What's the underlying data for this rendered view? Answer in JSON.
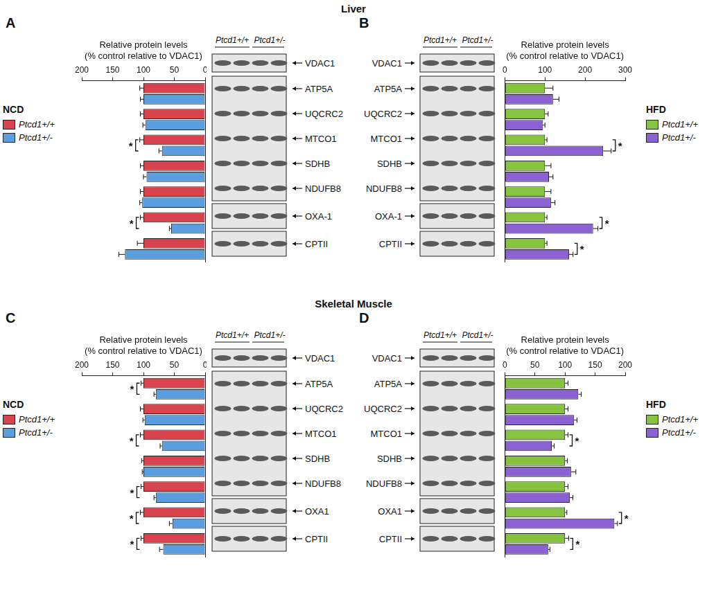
{
  "sections": [
    "Liver",
    "Skeletal Muscle"
  ],
  "chart_data": [
    {
      "type": "bar",
      "panel": "A",
      "legend_title": "NCD",
      "orientation": "horizontal",
      "x_label": [
        "Relative protein levels",
        "(% control relative to VDAC1)"
      ],
      "xlim": [
        200,
        0
      ],
      "xticks": [
        0,
        50,
        100,
        150,
        200
      ],
      "grid": false,
      "tick_labels": "x",
      "legend": "left",
      "loading_control": "VDAC1",
      "categories": [
        "ATP5A",
        "UQCRC2",
        "MTCO1",
        "SDHB",
        "NDUFB8",
        "OXA-1",
        "CPTII"
      ],
      "series": [
        {
          "name": "Ptcd1+/+",
          "color": "#d9434e",
          "values": [
            100,
            100,
            100,
            100,
            100,
            100,
            100
          ],
          "errors": [
            6,
            5,
            6,
            5,
            5,
            5,
            10
          ]
        },
        {
          "name": "Ptcd1+/-",
          "color": "#5a9ee0",
          "values": [
            100,
            97,
            70,
            95,
            102,
            55,
            130
          ],
          "errors": [
            5,
            4,
            5,
            5,
            4,
            3,
            10
          ]
        }
      ],
      "annotations": [
        {
          "category": "MTCO1",
          "text": "*"
        },
        {
          "category": "OXA-1",
          "text": "*"
        }
      ]
    },
    {
      "type": "bar",
      "panel": "B",
      "legend_title": "HFD",
      "orientation": "horizontal",
      "x_label": [
        "Relative protein levels",
        "(% control relative to VDAC1)"
      ],
      "xlim": [
        0,
        300
      ],
      "xticks": [
        0,
        100,
        200,
        300
      ],
      "grid": false,
      "tick_labels": "x",
      "legend": "right",
      "loading_control": "VDAC1",
      "categories": [
        "ATP5A",
        "UQCRC2",
        "MTCO1",
        "SDHB",
        "NDUFB8",
        "OXA-1",
        "CPTII"
      ],
      "series": [
        {
          "name": "Ptcd1+/+",
          "color": "#86c440",
          "values": [
            100,
            100,
            100,
            100,
            100,
            100,
            100
          ],
          "errors": [
            20,
            8,
            5,
            15,
            15,
            5,
            5
          ]
        },
        {
          "name": "Ptcd1+/-",
          "color": "#8b62d1",
          "values": [
            120,
            95,
            245,
            110,
            115,
            220,
            160
          ],
          "errors": [
            15,
            5,
            20,
            10,
            10,
            12,
            10
          ]
        }
      ],
      "annotations": [
        {
          "category": "MTCO1",
          "text": "*"
        },
        {
          "category": "OXA-1",
          "text": "*"
        },
        {
          "category": "CPTII",
          "text": "*"
        }
      ]
    },
    {
      "type": "bar",
      "panel": "C",
      "legend_title": "NCD",
      "orientation": "horizontal",
      "x_label": [
        "Relative protein levels",
        "(% control relative to VDAC1)"
      ],
      "xlim": [
        200,
        0
      ],
      "xticks": [
        0,
        50,
        100,
        150,
        200
      ],
      "grid": false,
      "tick_labels": "x",
      "legend": "left",
      "loading_control": "VDAC1",
      "categories": [
        "ATP5A",
        "UQCRC2",
        "MTCO1",
        "SDHB",
        "NDUFB8",
        "OXA1",
        "CPTII"
      ],
      "series": [
        {
          "name": "Ptcd1+/+",
          "color": "#d9434e",
          "values": [
            100,
            100,
            100,
            100,
            100,
            100,
            100
          ],
          "errors": [
            4,
            5,
            5,
            3,
            4,
            5,
            4
          ]
        },
        {
          "name": "Ptcd1+/-",
          "color": "#5a9ee0",
          "values": [
            80,
            98,
            70,
            100,
            80,
            53,
            68
          ],
          "errors": [
            3,
            3,
            3,
            2,
            3,
            5,
            6
          ]
        }
      ],
      "annotations": [
        {
          "category": "ATP5A",
          "text": "*"
        },
        {
          "category": "MTCO1",
          "text": "*"
        },
        {
          "category": "NDUFB8",
          "text": "*"
        },
        {
          "category": "OXA1",
          "text": "*"
        },
        {
          "category": "CPTII",
          "text": "*"
        }
      ]
    },
    {
      "type": "bar",
      "panel": "D",
      "legend_title": "HFD",
      "orientation": "horizontal",
      "x_label": [
        "Relative protein levels",
        "(% control relative to VDAC1)"
      ],
      "xlim": [
        0,
        200
      ],
      "xticks": [
        0,
        50,
        100,
        150,
        200
      ],
      "grid": false,
      "tick_labels": "x",
      "legend": "right",
      "loading_control": "VDAC1",
      "categories": [
        "ATP5A",
        "UQCRC2",
        "MTCO1",
        "SDHB",
        "NDUFB8",
        "OXA1",
        "CPTII"
      ],
      "series": [
        {
          "name": "Ptcd1+/+",
          "color": "#86c440",
          "values": [
            100,
            100,
            100,
            100,
            100,
            100,
            100
          ],
          "errors": [
            5,
            5,
            5,
            4,
            5,
            3,
            6
          ]
        },
        {
          "name": "Ptcd1+/-",
          "color": "#8b62d1",
          "values": [
            122,
            115,
            78,
            110,
            108,
            182,
            72
          ],
          "errors": [
            5,
            5,
            4,
            8,
            5,
            5,
            3
          ]
        }
      ],
      "annotations": [
        {
          "category": "MTCO1",
          "text": "*"
        },
        {
          "category": "OXA1",
          "text": "*"
        },
        {
          "category": "CPTII",
          "text": "*"
        }
      ]
    }
  ]
}
